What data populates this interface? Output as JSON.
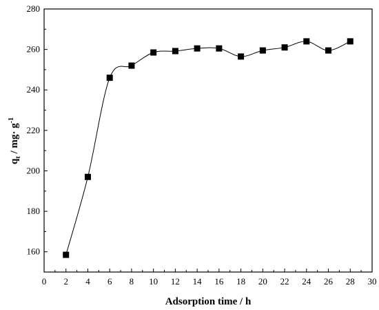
{
  "chart_data": {
    "type": "scatter",
    "title": "",
    "xlabel": "Adsorption time / h",
    "ylabel": {
      "main": "q",
      "sub": "t",
      "rest": " / mg· g",
      "sup": "-1"
    },
    "xlim": [
      0,
      30
    ],
    "ylim": [
      150,
      280
    ],
    "x_ticks": [
      "0",
      "2",
      "4",
      "6",
      "8",
      "10",
      "12",
      "14",
      "16",
      "18",
      "20",
      "22",
      "24",
      "26",
      "28",
      "30"
    ],
    "y_ticks": [
      "160",
      "180",
      "200",
      "220",
      "240",
      "260",
      "280"
    ],
    "grid": false,
    "legend": "none",
    "marker": "filled-square",
    "connecting_line": "smooth",
    "colors": {
      "series": "#000000",
      "background": "#ffffff"
    },
    "series": [
      {
        "x": [
          2,
          4,
          6,
          8,
          10,
          12,
          14,
          16,
          18,
          20,
          22,
          24,
          26,
          28
        ],
        "y": [
          158.5,
          197,
          246,
          252,
          258.5,
          259.2,
          260.5,
          260.5,
          256.5,
          259.5,
          261,
          264,
          259.5,
          264
        ]
      }
    ]
  }
}
